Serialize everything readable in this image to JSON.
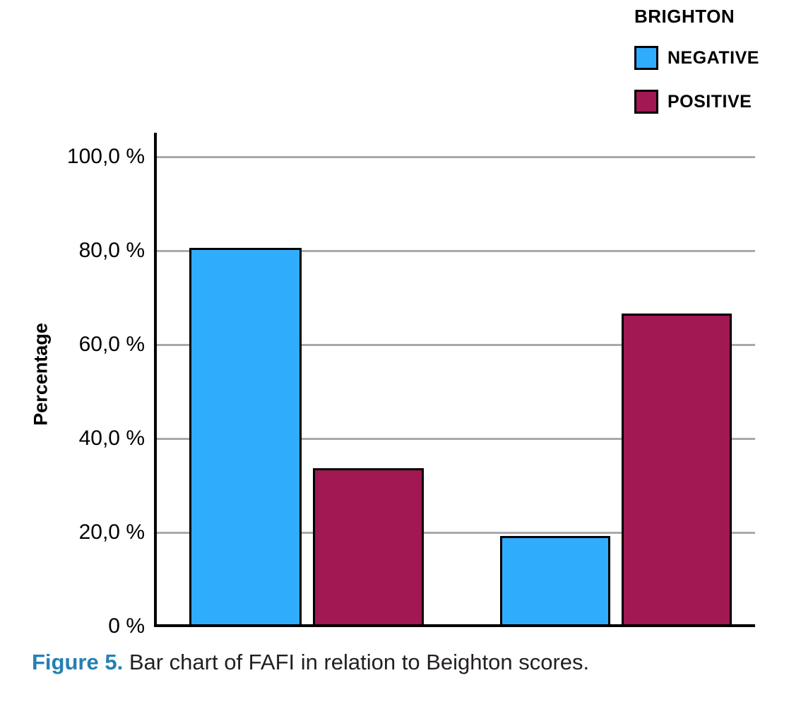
{
  "chart_data": {
    "type": "bar",
    "legend_title": "BRIGHTON",
    "series": [
      {
        "name": "NEGATIVE",
        "color": "#30acfc",
        "values": [
          80.7,
          19.3
        ]
      },
      {
        "name": "POSITIVE",
        "color": "#a11852",
        "values": [
          33.8,
          66.6
        ]
      }
    ],
    "categories": [
      "",
      ""
    ],
    "ylabel": "Percentage",
    "ylim": [
      0,
      100
    ],
    "ytick_labels": [
      "100,0 %",
      "80,0 %",
      "60,0 %",
      "40,0 %",
      "20,0 %",
      "0 %"
    ],
    "grid": true,
    "legend_position": "top-right"
  },
  "caption": {
    "label": "Figure 5.",
    "text": "Bar chart of FAFI in relation to Beighton scores."
  },
  "colors": {
    "figure_label": "#2580b2",
    "gridline": "#a9a9a9",
    "axis": "#000000",
    "bar_border": "#000000",
    "caption_text": "#231f20"
  }
}
